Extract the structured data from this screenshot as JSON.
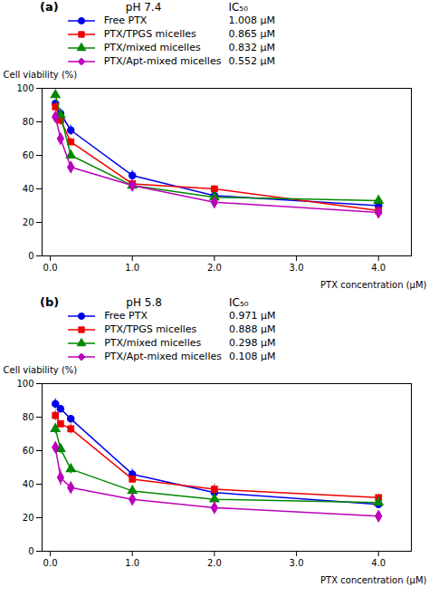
{
  "chart_data": [
    {
      "type": "line",
      "title": "pH 7.4",
      "xlabel": "PTX concentration (μM)",
      "ylabel": "Cell viability (%)",
      "annotations": [
        "(a)",
        "IC₅₀"
      ],
      "x": [
        0.0625,
        0.125,
        0.25,
        1,
        2,
        4
      ],
      "xlim": [
        -0.1,
        4.4
      ],
      "xticks": [
        0,
        1,
        2,
        3,
        4
      ],
      "ylim": [
        0,
        100
      ],
      "yticks": [
        0,
        20,
        40,
        60,
        80,
        100
      ],
      "grid": false,
      "series": [
        {
          "name": "Free PTX",
          "ic50": "1.008 μM",
          "color": "#0000EE",
          "marker": "circle",
          "values": [
            91,
            85,
            75,
            48,
            36,
            30
          ],
          "yerr": [
            2,
            3,
            3,
            3,
            2,
            2
          ]
        },
        {
          "name": "PTX/TPGS micelles",
          "ic50": "0.865 μM",
          "color": "#EE0000",
          "marker": "square",
          "values": [
            89,
            81,
            68,
            43,
            40,
            27
          ],
          "yerr": [
            2,
            3,
            2,
            2,
            2,
            1
          ]
        },
        {
          "name": "PTX/mixed micelles",
          "ic50": "0.832 μM",
          "color": "#008800",
          "marker": "triangle",
          "values": [
            96,
            84,
            60,
            42,
            35,
            33
          ],
          "yerr": [
            2,
            2,
            2,
            2,
            2,
            2
          ]
        },
        {
          "name": "PTX/Apt-mixed micelles",
          "ic50": "0.552 μM",
          "color": "#BB00BB",
          "marker": "diamond",
          "values": [
            83,
            70,
            53,
            42,
            32,
            26
          ],
          "yerr": [
            2,
            2,
            2,
            2,
            2,
            1
          ]
        }
      ]
    },
    {
      "type": "line",
      "title": "pH 5.8",
      "xlabel": "PTX concentration (μM)",
      "ylabel": "Cell viability (%)",
      "annotations": [
        "(b)",
        "IC₅₀"
      ],
      "x": [
        0.0625,
        0.125,
        0.25,
        1,
        2,
        4
      ],
      "xlim": [
        -0.1,
        4.4
      ],
      "xticks": [
        0,
        1,
        2,
        3,
        4
      ],
      "ylim": [
        0,
        100
      ],
      "yticks": [
        0,
        20,
        40,
        60,
        80,
        100
      ],
      "grid": false,
      "series": [
        {
          "name": "Free PTX",
          "ic50": "0.971 μM",
          "color": "#0000EE",
          "marker": "circle",
          "values": [
            88,
            85,
            79,
            46,
            35,
            28
          ],
          "yerr": [
            3,
            2,
            2,
            3,
            2,
            2
          ]
        },
        {
          "name": "PTX/TPGS micelles",
          "ic50": "0.888 μM",
          "color": "#EE0000",
          "marker": "square",
          "values": [
            81,
            76,
            73,
            43,
            37,
            32
          ],
          "yerr": [
            3,
            2,
            3,
            2,
            3,
            2
          ]
        },
        {
          "name": "PTX/mixed micelles",
          "ic50": "0.298 μM",
          "color": "#008800",
          "marker": "triangle",
          "values": [
            73,
            61,
            49,
            36,
            31,
            29
          ],
          "yerr": [
            3,
            3,
            3,
            3,
            2,
            2
          ]
        },
        {
          "name": "PTX/Apt-mixed micelles",
          "ic50": "0.108 μM",
          "color": "#BB00BB",
          "marker": "diamond",
          "values": [
            62,
            44,
            38,
            31,
            26,
            21
          ],
          "yerr": [
            3,
            5,
            3,
            2,
            2,
            2
          ]
        }
      ]
    }
  ]
}
